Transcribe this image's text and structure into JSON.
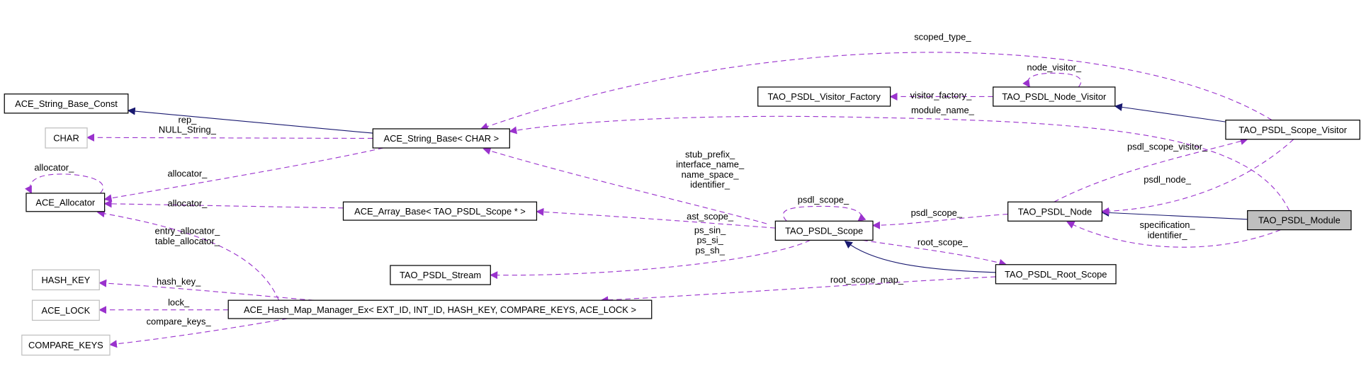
{
  "colors": {
    "usage_edge": "#9a32cd",
    "inheritance_edge": "#191970",
    "external_border": "#bfbfbf",
    "focus_fill": "#bfbfbf"
  },
  "nodes": [
    {
      "id": "string_base_const",
      "label": "ACE_String_Base_Const",
      "style": "normal"
    },
    {
      "id": "char",
      "label": "CHAR",
      "style": "external"
    },
    {
      "id": "allocator",
      "label": "ACE_Allocator",
      "style": "normal"
    },
    {
      "id": "hash_key",
      "label": "HASH_KEY",
      "style": "external"
    },
    {
      "id": "ace_lock",
      "label": "ACE_LOCK",
      "style": "external"
    },
    {
      "id": "compare_keys",
      "label": "COMPARE_KEYS",
      "style": "external"
    },
    {
      "id": "string_base",
      "label": "ACE_String_Base< CHAR >",
      "style": "normal"
    },
    {
      "id": "array_base",
      "label": "ACE_Array_Base< TAO_PSDL_Scope * >",
      "style": "normal"
    },
    {
      "id": "stream",
      "label": "TAO_PSDL_Stream",
      "style": "normal"
    },
    {
      "id": "hash_map",
      "label": "ACE_Hash_Map_Manager_Ex< EXT_ID, INT_ID, HASH_KEY, COMPARE_KEYS, ACE_LOCK >",
      "style": "normal"
    },
    {
      "id": "visitor_factory",
      "label": "TAO_PSDL_Visitor_Factory",
      "style": "normal"
    },
    {
      "id": "node_visitor",
      "label": "TAO_PSDL_Node_Visitor",
      "style": "normal"
    },
    {
      "id": "scope_visitor",
      "label": "TAO_PSDL_Scope_Visitor",
      "style": "normal"
    },
    {
      "id": "psdl_node",
      "label": "TAO_PSDL_Node",
      "style": "normal"
    },
    {
      "id": "module",
      "label": "TAO_PSDL_Module",
      "style": "focus"
    },
    {
      "id": "psdl_scope",
      "label": "TAO_PSDL_Scope",
      "style": "normal"
    },
    {
      "id": "root_scope",
      "label": "TAO_PSDL_Root_Scope",
      "style": "normal"
    }
  ],
  "edges": [
    {
      "from": "string_base",
      "to": "string_base_const",
      "kind": "inherit",
      "labels": []
    },
    {
      "from": "scope_visitor",
      "to": "node_visitor",
      "kind": "inherit",
      "labels": []
    },
    {
      "from": "module",
      "to": "psdl_node",
      "kind": "inherit",
      "labels": []
    },
    {
      "from": "root_scope",
      "to": "psdl_scope",
      "kind": "inherit",
      "labels": []
    },
    {
      "from": "string_base",
      "to": "char",
      "kind": "usage",
      "labels": [
        "rep_",
        "NULL_String_"
      ]
    },
    {
      "from": "string_base",
      "to": "allocator",
      "kind": "usage",
      "labels": [
        "allocator_"
      ]
    },
    {
      "from": "allocator",
      "to": "allocator",
      "kind": "usage",
      "labels": [
        "allocator_"
      ]
    },
    {
      "from": "array_base",
      "to": "allocator",
      "kind": "usage",
      "labels": [
        "allocator_"
      ]
    },
    {
      "from": "hash_map",
      "to": "allocator",
      "kind": "usage",
      "labels": [
        "entry_allocator_",
        "table_allocator_"
      ]
    },
    {
      "from": "hash_map",
      "to": "hash_key",
      "kind": "usage",
      "labels": [
        "hash_key_"
      ]
    },
    {
      "from": "hash_map",
      "to": "ace_lock",
      "kind": "usage",
      "labels": [
        "lock_"
      ]
    },
    {
      "from": "hash_map",
      "to": "compare_keys",
      "kind": "usage",
      "labels": [
        "compare_keys_"
      ]
    },
    {
      "from": "psdl_scope",
      "to": "string_base",
      "kind": "usage",
      "labels": [
        "stub_prefix_",
        "interface_name_",
        "name_space_",
        "identifier_"
      ]
    },
    {
      "from": "psdl_scope",
      "to": "psdl_scope",
      "kind": "usage",
      "labels": [
        "psdl_scope_"
      ]
    },
    {
      "from": "psdl_scope",
      "to": "array_base",
      "kind": "usage",
      "labels": [
        "ast_scope_"
      ]
    },
    {
      "from": "psdl_scope",
      "to": "stream",
      "kind": "usage",
      "labels": [
        "ps_sin_",
        "ps_si_",
        "ps_sh_"
      ]
    },
    {
      "from": "psdl_node",
      "to": "psdl_scope",
      "kind": "usage",
      "labels": [
        "psdl_scope_"
      ]
    },
    {
      "from": "psdl_scope",
      "to": "root_scope",
      "kind": "usage",
      "labels": [
        "root_scope_"
      ]
    },
    {
      "from": "root_scope",
      "to": "hash_map",
      "kind": "usage",
      "labels": [
        "root_scope_map_"
      ]
    },
    {
      "from": "node_visitor",
      "to": "visitor_factory",
      "kind": "usage",
      "labels": [
        "visitor_factory_"
      ]
    },
    {
      "from": "node_visitor",
      "to": "node_visitor",
      "kind": "usage",
      "labels": [
        "node_visitor_"
      ]
    },
    {
      "from": "scope_visitor",
      "to": "string_base",
      "kind": "usage",
      "labels": [
        "scoped_type_"
      ]
    },
    {
      "from": "module",
      "to": "string_base",
      "kind": "usage",
      "labels": [
        "module_name_"
      ]
    },
    {
      "from": "psdl_node",
      "to": "scope_visitor",
      "kind": "usage",
      "labels": [
        "psdl_scope_visitor_"
      ]
    },
    {
      "from": "scope_visitor",
      "to": "psdl_node",
      "kind": "usage",
      "labels": [
        "psdl_node_"
      ]
    },
    {
      "from": "module",
      "to": "psdl_node",
      "kind": "usage",
      "labels": [
        "specification_",
        "identifier_"
      ]
    }
  ]
}
